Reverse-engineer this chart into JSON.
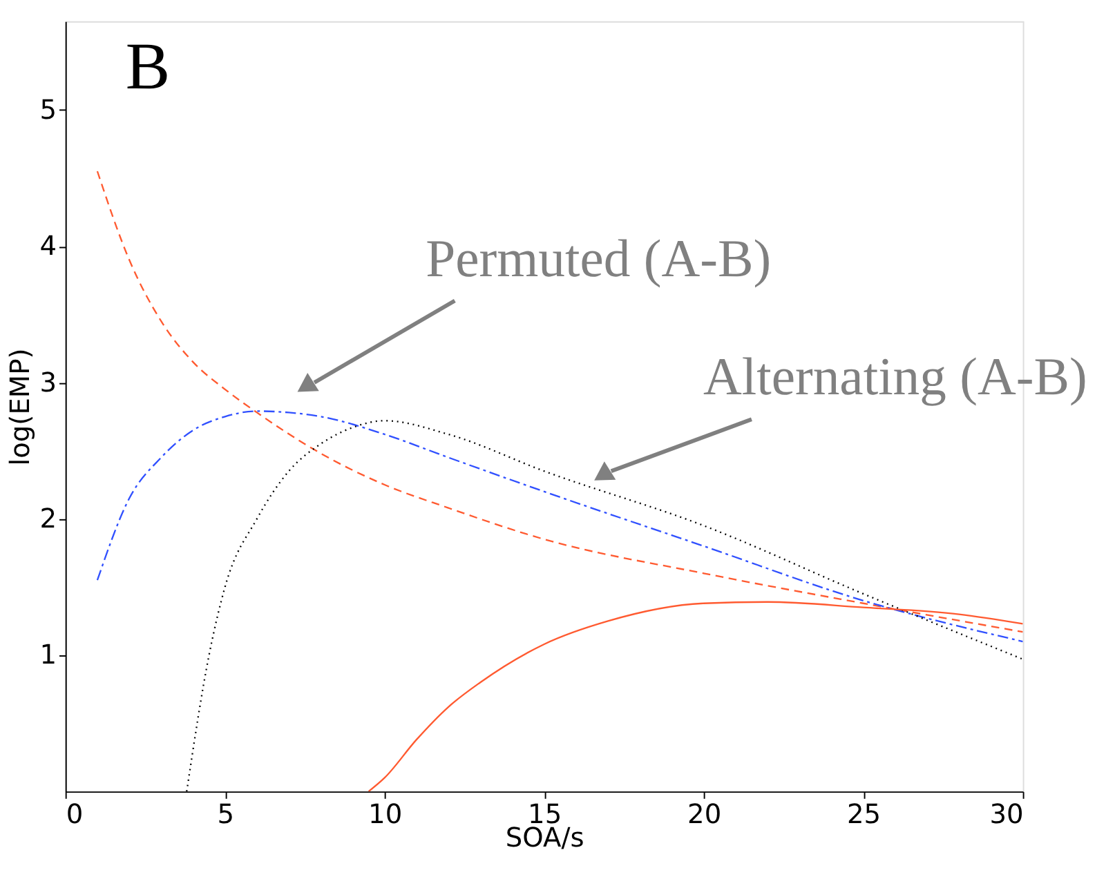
{
  "chart_data": {
    "type": "line",
    "xlabel": "SOA/s",
    "ylabel": "log(EMP)",
    "xlim": [
      0,
      30
    ],
    "xticks": [
      0,
      5,
      10,
      15,
      20,
      25,
      30
    ],
    "ylim": [
      0,
      5.65
    ],
    "yticks": [
      1,
      2,
      3,
      4,
      5
    ],
    "grid": false,
    "series": [
      {
        "color": "#ff5a30",
        "line_style": "dashed",
        "x": [
          1,
          2,
          3,
          4,
          5,
          6,
          8,
          10,
          12,
          15,
          20,
          25,
          30
        ],
        "values": [
          4.55,
          3.9,
          3.45,
          3.15,
          2.95,
          2.78,
          2.48,
          2.25,
          2.08,
          1.85,
          1.6,
          1.38,
          1.17
        ]
      },
      {
        "color": "#3050ff",
        "line_style": "dashdot",
        "x": [
          1,
          2,
          3,
          4,
          5,
          6,
          7,
          8,
          10,
          12,
          15,
          20,
          25,
          30
        ],
        "values": [
          1.55,
          2.15,
          2.45,
          2.65,
          2.75,
          2.79,
          2.78,
          2.75,
          2.62,
          2.45,
          2.2,
          1.8,
          1.4,
          1.1
        ]
      },
      {
        "color": "#000000",
        "line_style": "dotted",
        "x": [
          3.8,
          4.5,
          5,
          6,
          7,
          8,
          9,
          10,
          12,
          15,
          20,
          25,
          30
        ],
        "values": [
          0,
          1.0,
          1.5,
          2.0,
          2.35,
          2.55,
          2.67,
          2.72,
          2.62,
          2.35,
          1.95,
          1.45,
          0.97
        ]
      },
      {
        "color": "#ff5a30",
        "line_style": "solid",
        "x": [
          9.5,
          10,
          11,
          12,
          13,
          15,
          17,
          20,
          22,
          25,
          28,
          30
        ],
        "values": [
          0,
          0.1,
          0.38,
          0.62,
          0.8,
          1.08,
          1.25,
          1.38,
          1.39,
          1.35,
          1.3,
          1.23
        ]
      }
    ],
    "annotations": [
      "B",
      "Permuted (A-B)",
      "Alternating (A-B)"
    ]
  }
}
